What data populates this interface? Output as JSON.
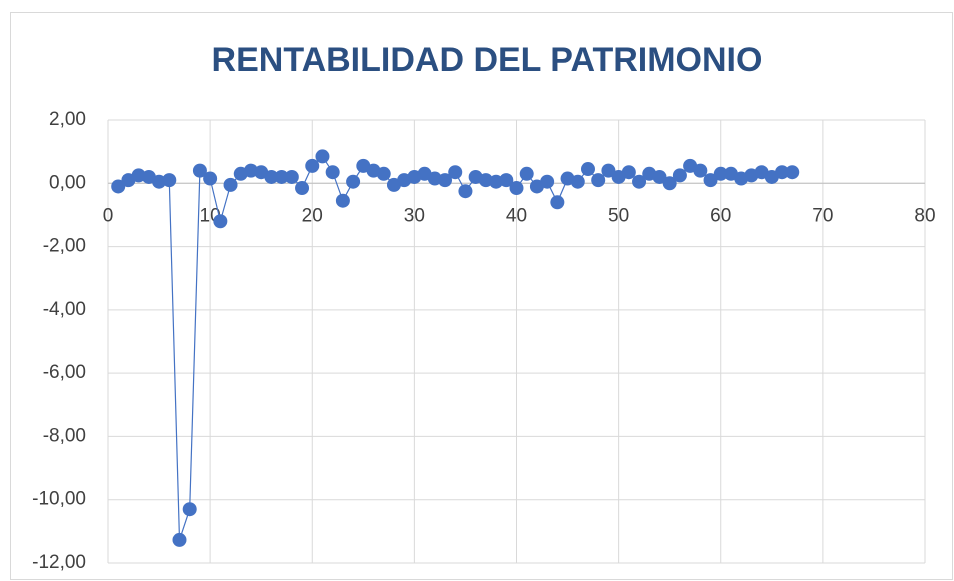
{
  "chart_data": {
    "type": "scatter",
    "title": "RENTABILIDAD DEL PATRIMONIO",
    "x": [
      1,
      2,
      3,
      4,
      5,
      6,
      7,
      8,
      9,
      10,
      11,
      12,
      13,
      14,
      15,
      16,
      17,
      18,
      19,
      20,
      21,
      22,
      23,
      24,
      25,
      26,
      27,
      28,
      29,
      30,
      31,
      32,
      33,
      34,
      35,
      36,
      37,
      38,
      39,
      40,
      41,
      42,
      43,
      44,
      45,
      46,
      47,
      48,
      49,
      50,
      51,
      52,
      53,
      54,
      55,
      56,
      57,
      58,
      59,
      60,
      61,
      62,
      63,
      64,
      65,
      66,
      67
    ],
    "series": [
      {
        "color": "#4472c4",
        "values": [
          -0.1,
          0.1,
          0.25,
          0.2,
          0.05,
          0.1,
          -11.27,
          -10.3,
          0.4,
          0.15,
          -1.2,
          -0.05,
          0.3,
          0.4,
          0.35,
          0.2,
          0.2,
          0.2,
          -0.15,
          0.55,
          0.85,
          0.35,
          -0.55,
          0.05,
          0.55,
          0.4,
          0.3,
          -0.05,
          0.1,
          0.2,
          0.3,
          0.15,
          0.1,
          0.35,
          -0.25,
          0.2,
          0.1,
          0.05,
          0.1,
          -0.15,
          0.3,
          -0.1,
          0.05,
          -0.6,
          0.15,
          0.05,
          0.45,
          0.1,
          0.4,
          0.2,
          0.35,
          0.05,
          0.3,
          0.2,
          0,
          0.25,
          0.55,
          0.4,
          0.1,
          0.3,
          0.3,
          0.15,
          0.25,
          0.35,
          0.2,
          0.35,
          0.35
        ]
      }
    ],
    "xlim": [
      0,
      80
    ],
    "xticks": [
      0,
      10,
      20,
      30,
      40,
      50,
      60,
      70,
      80
    ],
    "ylim": [
      -12,
      2
    ],
    "yticks": [
      {
        "value": -12,
        "label": "-12,00"
      },
      {
        "value": -10,
        "label": "-10,00"
      },
      {
        "value": -8,
        "label": "-8,00"
      },
      {
        "value": -6,
        "label": "-6,00"
      },
      {
        "value": -4,
        "label": "-4,00"
      },
      {
        "value": -2,
        "label": "-2,00"
      },
      {
        "value": 0,
        "label": "0,00"
      },
      {
        "value": 2,
        "label": "2,00"
      }
    ],
    "grid": true
  }
}
